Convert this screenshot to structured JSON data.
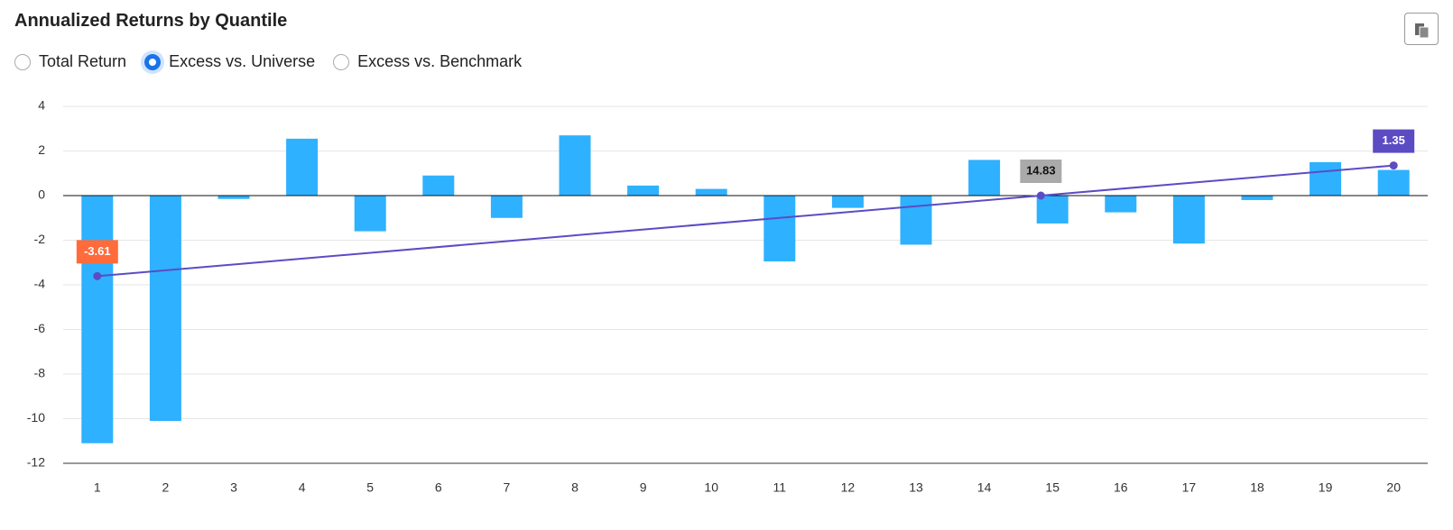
{
  "chart_data": {
    "type": "bar",
    "title": "Annualized Returns by Quantile",
    "options": [
      "Total Return",
      "Excess vs. Universe",
      "Excess vs. Benchmark"
    ],
    "selected_option": 1,
    "categories": [
      "1",
      "2",
      "3",
      "4",
      "5",
      "6",
      "7",
      "8",
      "9",
      "10",
      "11",
      "12",
      "13",
      "14",
      "15",
      "16",
      "17",
      "18",
      "19",
      "20"
    ],
    "values": [
      -11.1,
      -10.1,
      -0.15,
      2.55,
      -1.6,
      0.9,
      -1.0,
      2.7,
      0.45,
      0.3,
      -2.95,
      -0.55,
      -2.2,
      1.6,
      -1.25,
      -0.75,
      -2.15,
      -0.2,
      1.5,
      1.15
    ],
    "color": "#2eb1ff",
    "ylim": [
      -12,
      4
    ],
    "yticks": [
      -12,
      -10,
      -8,
      -6,
      -4,
      -2,
      0,
      2,
      4
    ],
    "grid": true,
    "trend": {
      "color": "#5b4cc4",
      "start": -3.61,
      "end": 1.35,
      "start_color": "#ff6b3b",
      "end_color": "#5b4cc4"
    },
    "x_intercept": {
      "value": 14.83,
      "color": "#aaaaaa"
    }
  }
}
